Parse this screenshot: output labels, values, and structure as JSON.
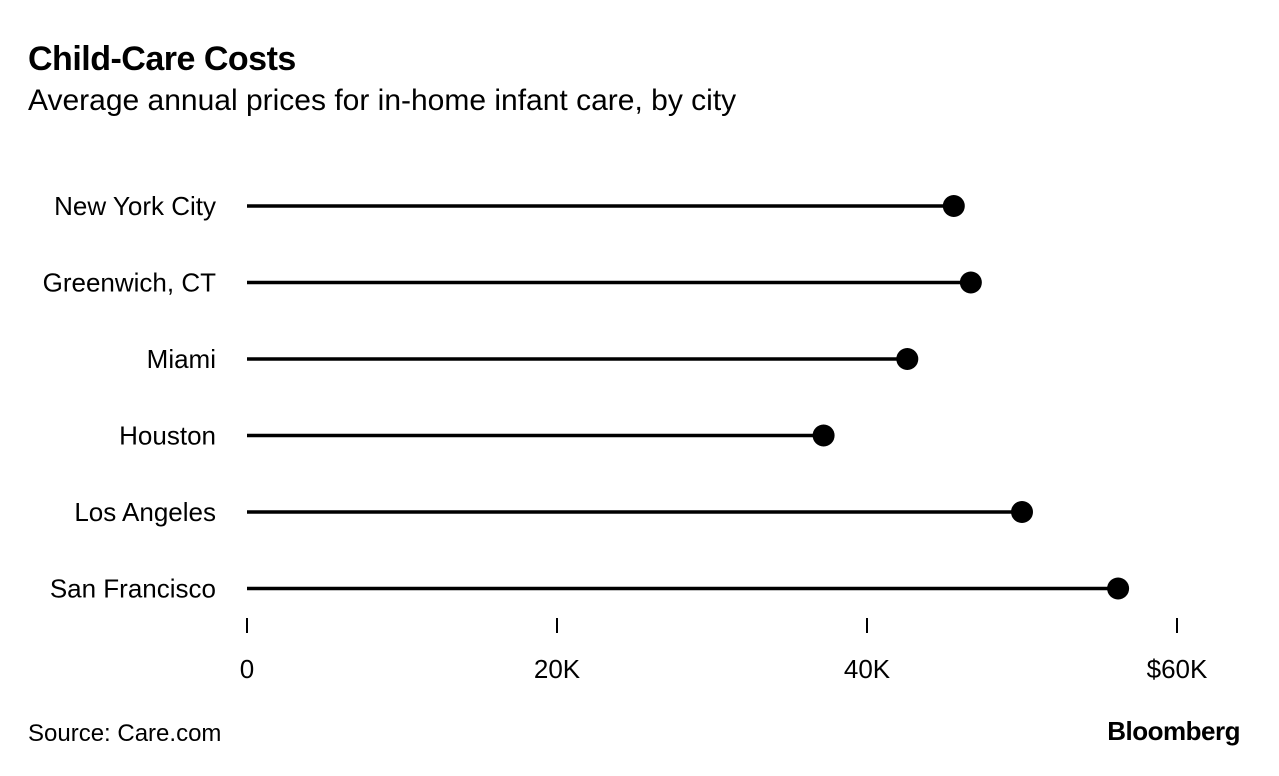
{
  "chart_data": {
    "type": "lollipop",
    "title": "Child-Care Costs",
    "subtitle": "Average annual prices for in-home infant care, by city",
    "categories": [
      "New York City",
      "Greenwich, CT",
      "Miami",
      "Houston",
      "Los Angeles",
      "San Francisco"
    ],
    "values": [
      45600,
      46700,
      42600,
      37200,
      50000,
      56200
    ],
    "x_ticks": [
      0,
      20000,
      40000,
      60000
    ],
    "x_tick_labels": [
      "0",
      "20K",
      "40K",
      "$60K"
    ],
    "xlim": [
      0,
      60000
    ],
    "grid": false,
    "legend": "none"
  },
  "footer": {
    "source": "Source: Care.com",
    "brand": "Bloomberg"
  },
  "colors": {
    "ink": "#000000",
    "background": "#ffffff"
  }
}
